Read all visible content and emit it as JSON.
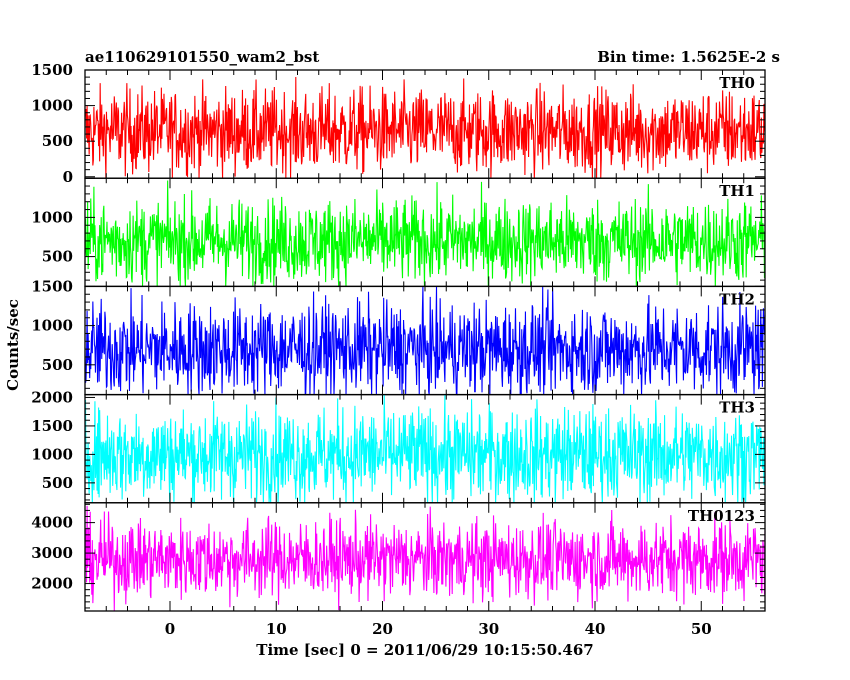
{
  "header": {
    "title": "ae110629101550_wam2_bst",
    "bin_time": "Bin time: 1.5625E-2 s"
  },
  "chart_data": {
    "type": "line",
    "title": "ae110629101550_wam2_bst",
    "xlabel": "Time [sec] 0 = 2011/06/29 10:15:50.467",
    "ylabel": "Counts/sec",
    "xlim": [
      -8.0,
      56.0
    ],
    "x_ticks": [
      0,
      10,
      20,
      30,
      40,
      50
    ],
    "x_range_data": [
      -8.0,
      56.0
    ],
    "panels": [
      {
        "name": "TH0",
        "color": "#ff0000",
        "ylim": [
          -20,
          1500
        ],
        "yticks": [
          0,
          500,
          1000,
          1500
        ],
        "mean": 640,
        "spread": 300,
        "max": 1450
      },
      {
        "name": "TH1",
        "color": "#00ff00",
        "ylim": [
          120,
          1500
        ],
        "yticks": [
          500,
          1000
        ],
        "mean": 700,
        "spread": 270,
        "max": 1470
      },
      {
        "name": "TH2",
        "color": "#0000ff",
        "ylim": [
          120,
          1500
        ],
        "yticks": [
          500,
          1000,
          1500
        ],
        "mean": 700,
        "spread": 300,
        "max": 1500
      },
      {
        "name": "TH3",
        "color": "#00ffff",
        "ylim": [
          150,
          2050
        ],
        "yticks": [
          500,
          1000,
          1500,
          2000
        ],
        "mean": 1000,
        "spread": 420,
        "max": 2050
      },
      {
        "name": "TH0123",
        "color": "#ff00ff",
        "ylim": [
          1100,
          4650
        ],
        "yticks": [
          2000,
          3000,
          4000
        ],
        "mean": 2800,
        "spread": 650,
        "max": 4600
      }
    ]
  }
}
